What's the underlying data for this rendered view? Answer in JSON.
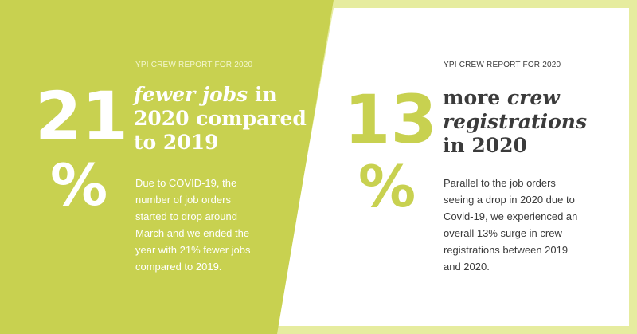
{
  "colors": {
    "accent_green": "#c8d150",
    "frame_light": "#e6ec9f",
    "white": "#ffffff",
    "dark_text": "#3b3b3b"
  },
  "left_card": {
    "report_label": "YPI CREW REPORT FOR 2020",
    "stat_number": "21",
    "stat_percent": "%",
    "headline_italic": "fewer jobs",
    "headline_rest_1": " in",
    "headline_line_2": "2020 compared",
    "headline_line_3": "to 2019",
    "body_lines": [
      "Due to COVID-19, the",
      "number of job orders",
      "started to drop around",
      "March and we ended the",
      "year with 21% fewer jobs",
      "compared to 2019."
    ]
  },
  "right_card": {
    "report_label": "YPI CREW REPORT FOR 2020",
    "stat_number": "13",
    "stat_percent": "%",
    "headline_plain_1": "more ",
    "headline_italic_1": "crew",
    "headline_italic_2": "registrations",
    "headline_line_3": "in 2020",
    "body_lines": [
      "Parallel to the job orders",
      "seeing a drop in 2020 due to",
      "Covid-19, we experienced an",
      "overall 13% surge in crew",
      "registrations between 2019",
      "and 2020."
    ]
  }
}
